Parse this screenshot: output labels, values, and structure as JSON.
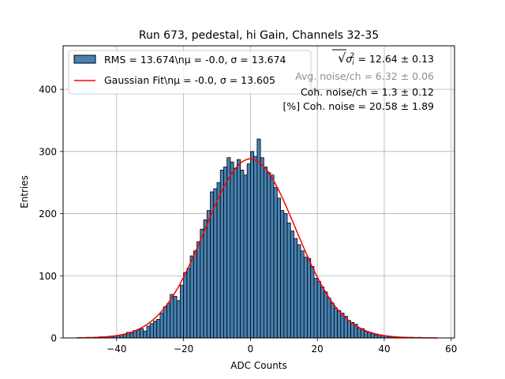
{
  "chart_data": {
    "type": "bar",
    "title": "Run 673, pedestal, hi Gain, Channels 32-35",
    "xlabel": "ADC Counts",
    "ylabel": "Entries",
    "xlim": [
      -56,
      61
    ],
    "ylim": [
      0,
      470
    ],
    "grid": true,
    "x_ticks": [
      -40,
      -20,
      0,
      20,
      40,
      60
    ],
    "y_ticks": [
      0,
      100,
      200,
      300,
      400
    ],
    "x_tick_labels": [
      "−40",
      "−20",
      "0",
      "20",
      "40",
      "60"
    ],
    "y_tick_labels": [
      "0",
      "100",
      "200",
      "300",
      "400"
    ],
    "histogram": {
      "bin_width": 1,
      "bin_starts": [
        -49,
        -48,
        -47,
        -46,
        -45,
        -44,
        -43,
        -42,
        -41,
        -40,
        -39,
        -38,
        -37,
        -36,
        -35,
        -34,
        -33,
        -32,
        -31,
        -30,
        -29,
        -28,
        -27,
        -26,
        -25,
        -24,
        -23,
        -22,
        -21,
        -20,
        -19,
        -18,
        -17,
        -16,
        -15,
        -14,
        -13,
        -12,
        -11,
        -10,
        -9,
        -8,
        -7,
        -6,
        -5,
        -4,
        -3,
        -2,
        -1,
        0,
        1,
        2,
        3,
        4,
        5,
        6,
        7,
        8,
        9,
        10,
        11,
        12,
        13,
        14,
        15,
        16,
        17,
        18,
        19,
        20,
        21,
        22,
        23,
        24,
        25,
        26,
        27,
        28,
        29,
        30,
        31,
        32,
        33,
        34,
        35,
        36,
        37,
        38,
        39,
        40,
        41,
        42,
        43,
        44,
        45,
        46,
        47,
        48,
        49,
        50,
        51,
        52,
        53,
        54,
        55
      ],
      "counts": [
        1,
        0,
        1,
        1,
        2,
        1,
        2,
        3,
        3,
        4,
        5,
        6,
        9,
        8,
        12,
        13,
        15,
        11,
        19,
        23,
        27,
        30,
        40,
        50,
        55,
        70,
        67,
        60,
        85,
        105,
        112,
        132,
        140,
        155,
        175,
        190,
        205,
        235,
        240,
        250,
        270,
        275,
        290,
        283,
        273,
        287,
        270,
        262,
        280,
        300,
        292,
        320,
        290,
        275,
        266,
        262,
        242,
        225,
        205,
        200,
        185,
        172,
        160,
        150,
        140,
        130,
        128,
        115,
        96,
        91,
        82,
        74,
        64,
        56,
        48,
        44,
        40,
        35,
        28,
        25,
        22,
        16,
        15,
        11,
        9,
        7,
        5,
        5,
        4,
        3,
        2,
        2,
        1,
        1,
        1,
        1,
        1,
        1,
        0,
        1,
        0,
        0,
        0,
        0,
        0
      ]
    },
    "series": [
      {
        "name": "RMS = 13.674\\nμ = -0.0, σ = 13.674",
        "kind": "histogram",
        "color": "#4682b4",
        "edge_color": "#000000"
      },
      {
        "name": "Gaussian Fit\\nμ = -0.0, σ = 13.605",
        "kind": "line",
        "color": "#ff0000",
        "mu": 0.0,
        "sigma": 13.605,
        "amplitude": 288,
        "x_range": [
          -52,
          56
        ]
      }
    ],
    "legend": {
      "location": "top-left",
      "entries": [
        {
          "label": "RMS = 13.674\\nμ = -0.0, σ = 13.674"
        },
        {
          "label": "Gaussian Fit\\nμ = -0.0, σ = 13.605"
        }
      ]
    },
    "annotations": [
      {
        "id": "sqrt-sigma",
        "prefix": "√",
        "symbol": "σ",
        "sub": "i",
        "sup": "2",
        "text": " = 12.64 ± 0.13"
      },
      {
        "id": "avg-noise",
        "text": "Avg. noise/ch = 6.32 ± 0.06"
      },
      {
        "id": "coh-noise",
        "text": "Coh. noise/ch = 1.3 ± 0.12"
      },
      {
        "id": "pct-coh-noise",
        "text": "[%] Coh. noise = 20.58 ± 1.89"
      }
    ]
  }
}
